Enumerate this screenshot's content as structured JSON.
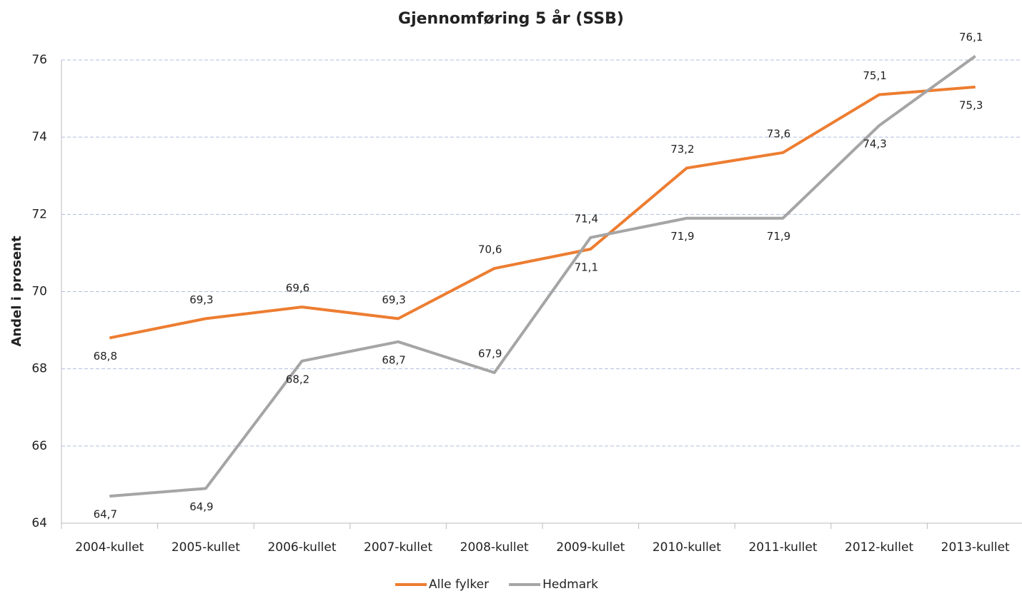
{
  "chart_data": {
    "type": "line",
    "title": "Gjennomføring 5 år (SSB)",
    "y_axis_label": "Andel i prosent",
    "categories": [
      "2004-kullet",
      "2005-kullet",
      "2006-kullet",
      "2007-kullet",
      "2008-kullet",
      "2009-kullet",
      "2010-kullet",
      "2011-kullet",
      "2012-kullet",
      "2013-kullet"
    ],
    "series": [
      {
        "name": "Alle fylker",
        "color": "#ed7d31",
        "values": [
          68.8,
          69.3,
          69.6,
          69.3,
          70.6,
          71.1,
          73.2,
          73.6,
          75.1,
          75.3
        ],
        "value_labels": [
          "68,8",
          "69,3",
          "69,6",
          "69,3",
          "70,6",
          "71,1",
          "73,2",
          "73,6",
          "75,1",
          "75,3"
        ]
      },
      {
        "name": "Hedmark",
        "color": "#a5a5a5",
        "values": [
          64.7,
          64.9,
          68.2,
          68.7,
          67.9,
          71.4,
          71.9,
          71.9,
          74.3,
          76.1
        ],
        "value_labels": [
          "64,7",
          "64,9",
          "68,2",
          "68,7",
          "67,9",
          "71,4",
          "71,9",
          "71,9",
          "74,3",
          "76,1"
        ]
      }
    ],
    "ylim": [
      64,
      76
    ],
    "yticks": [
      64,
      66,
      68,
      70,
      72,
      74,
      76
    ],
    "grid": true,
    "legend": "bottom"
  }
}
